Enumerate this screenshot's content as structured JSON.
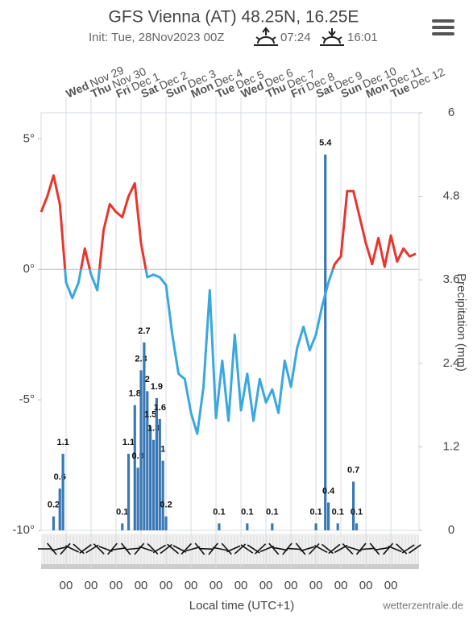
{
  "chart_data": {
    "type": "meteogram",
    "title": "GFS Vienna (AT) 48.25N, 16.25E",
    "subtitle": "Init: Tue, 28Nov2023 00Z",
    "sunrise": "07:24",
    "sunset": "16:01",
    "days": [
      {
        "weekday": "Wed",
        "date": "Nov 29"
      },
      {
        "weekday": "Thu",
        "date": "Nov 30"
      },
      {
        "weekday": "Fri",
        "date": "Dec 1"
      },
      {
        "weekday": "Sat",
        "date": "Dec 2"
      },
      {
        "weekday": "Sun",
        "date": "Dec 3"
      },
      {
        "weekday": "Mon",
        "date": "Dec 4"
      },
      {
        "weekday": "Tue",
        "date": "Dec 5"
      },
      {
        "weekday": "Wed",
        "date": "Dec 6"
      },
      {
        "weekday": "Thu",
        "date": "Dec 7"
      },
      {
        "weekday": "Fri",
        "date": "Dec 8"
      },
      {
        "weekday": "Sat",
        "date": "Dec 9"
      },
      {
        "weekday": "Sun",
        "date": "Dec 10"
      },
      {
        "weekday": "Mon",
        "date": "Dec 11"
      },
      {
        "weekday": "Tue",
        "date": "Dec 12"
      }
    ],
    "hour_labels": [
      "00",
      "00",
      "00",
      "00",
      "00",
      "00",
      "00",
      "00",
      "00",
      "00",
      "00",
      "00",
      "00",
      "00"
    ],
    "xlabel": "Local time (UTC+1)",
    "credit": "wetterzentrale.de",
    "y2label": "Precipitation (mm)",
    "xlim": [
      0,
      363
    ],
    "ylim": [
      -10,
      6
    ],
    "yticks": [
      {
        "value": 5,
        "label": "5°"
      },
      {
        "value": 0,
        "label": "0°"
      },
      {
        "value": -5,
        "label": "-5°"
      },
      {
        "value": -10,
        "label": "-10°"
      }
    ],
    "y2lim": [
      0,
      6
    ],
    "y2ticks": [
      0,
      1.2,
      2.4,
      3.6,
      4.8,
      6
    ],
    "temperature": {
      "colors": {
        "above": "#e8352e",
        "below": "#3aa7e0"
      },
      "x": [
        0,
        6,
        12,
        18,
        24,
        30,
        36,
        42,
        48,
        54,
        60,
        66,
        72,
        78,
        84,
        90,
        96,
        102,
        108,
        114,
        120,
        126,
        132,
        138,
        144,
        150,
        156,
        162,
        168,
        174,
        180,
        186,
        192,
        198,
        204,
        210,
        216,
        222,
        228,
        234,
        240,
        246,
        252,
        258,
        264,
        270,
        276,
        282,
        288,
        294,
        300,
        306,
        312,
        318,
        324,
        330,
        336,
        342,
        348,
        354,
        360
      ],
      "values": [
        2.2,
        2.8,
        3.6,
        2.5,
        -0.5,
        -1.1,
        -0.5,
        0.8,
        -0.2,
        -0.8,
        1.5,
        2.5,
        2.2,
        2.0,
        2.8,
        3.3,
        1.0,
        -0.3,
        -0.2,
        -0.3,
        -0.6,
        -2.5,
        -4.0,
        -4.2,
        -5.5,
        -6.3,
        -4.5,
        -0.8,
        -5.7,
        -3.5,
        -5.8,
        -2.5,
        -5.4,
        -4.0,
        -5.8,
        -4.2,
        -5.1,
        -4.6,
        -5.5,
        -3.5,
        -4.5,
        -3.0,
        -2.2,
        -3.1,
        -2.5,
        -1.4,
        -0.5,
        0.2,
        0.5,
        3.0,
        3.0,
        2.0,
        1.0,
        0.2,
        1.2,
        0.1,
        1.3,
        0.3,
        0.8,
        0.5,
        0.6
      ]
    },
    "precipitation": {
      "color": "#3a78b5",
      "axis": "y2",
      "x": [
        12,
        18,
        21,
        78,
        84,
        90,
        93,
        96,
        99,
        102,
        105,
        108,
        111,
        114,
        117,
        120,
        171,
        198,
        222,
        264,
        273,
        276,
        285,
        300,
        303
      ],
      "values": [
        0.2,
        0.6,
        1.1,
        0.1,
        1.1,
        1.8,
        0.9,
        2.3,
        2.7,
        2.0,
        1.5,
        1.3,
        1.9,
        1.6,
        1.0,
        0.2,
        0.1,
        0.1,
        0.1,
        0.1,
        5.4,
        0.4,
        0.1,
        0.7,
        0.1
      ]
    }
  }
}
